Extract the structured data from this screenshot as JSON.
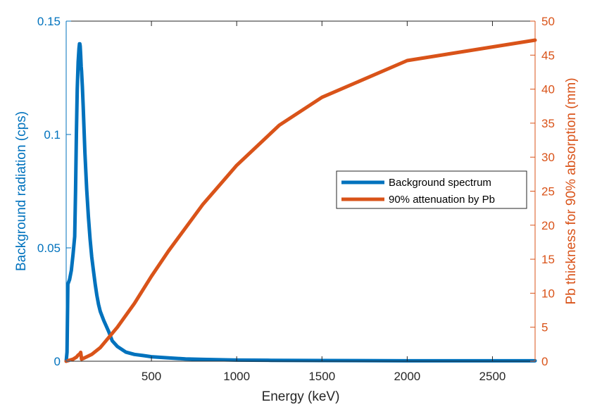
{
  "chart_data": {
    "type": "line",
    "xlabel": "Energy (keV)",
    "ylabel_left": "Background radiation (cps)",
    "ylabel_right": "Pb thickness for 90% absorption (mm)",
    "xlim": [
      0,
      2750
    ],
    "ylim_left": [
      0,
      0.15
    ],
    "ylim_right": [
      0,
      50
    ],
    "x_ticks": [
      500,
      1000,
      1500,
      2000,
      2500
    ],
    "y_left_ticks": [
      0,
      0.05,
      0.1,
      0.15
    ],
    "y_left_tick_labels": [
      "0",
      "0.05",
      "0.1",
      "0.15"
    ],
    "y_right_ticks": [
      0,
      5,
      10,
      15,
      20,
      25,
      30,
      35,
      40,
      45,
      50
    ],
    "grid": false,
    "legend_position": "center-right",
    "colors": {
      "left_axis": "#0072BD",
      "right_axis": "#D95319",
      "axis": "#262626"
    },
    "series": [
      {
        "name": "Background spectrum",
        "axis": "left",
        "color": "#0072BD",
        "x": [
          0,
          5,
          10,
          20,
          30,
          40,
          50,
          55,
          60,
          65,
          70,
          75,
          78,
          80,
          82,
          85,
          88,
          90,
          95,
          100,
          110,
          120,
          130,
          140,
          150,
          160,
          170,
          180,
          190,
          200,
          220,
          250,
          270,
          300,
          350,
          400,
          450,
          500,
          600,
          700,
          800,
          1000,
          1200,
          1500,
          2000,
          2500,
          2750
        ],
        "y": [
          0.0,
          0.004,
          0.034,
          0.036,
          0.04,
          0.047,
          0.055,
          0.075,
          0.1,
          0.12,
          0.132,
          0.138,
          0.14,
          0.14,
          0.139,
          0.135,
          0.13,
          0.128,
          0.121,
          0.112,
          0.092,
          0.076,
          0.064,
          0.054,
          0.046,
          0.04,
          0.034,
          0.029,
          0.025,
          0.022,
          0.018,
          0.013,
          0.009,
          0.0065,
          0.004,
          0.003,
          0.0025,
          0.002,
          0.0015,
          0.001,
          0.0008,
          0.0005,
          0.0004,
          0.0003,
          0.0002,
          0.0002,
          0.0002
        ]
      },
      {
        "name": "90% attenuation by Pb",
        "axis": "right",
        "color": "#D95319",
        "x": [
          0,
          40,
          60,
          70,
          80,
          85,
          88,
          90,
          100,
          150,
          200,
          300,
          400,
          500,
          600,
          800,
          1000,
          1250,
          1500,
          2000,
          2750
        ],
        "y": [
          0,
          0.3,
          0.6,
          0.9,
          1.1,
          1.3,
          0.8,
          0.3,
          0.4,
          1.0,
          2.0,
          5.0,
          8.5,
          12.5,
          16.2,
          23.0,
          28.8,
          34.7,
          38.8,
          44.2,
          47.2
        ]
      }
    ]
  }
}
